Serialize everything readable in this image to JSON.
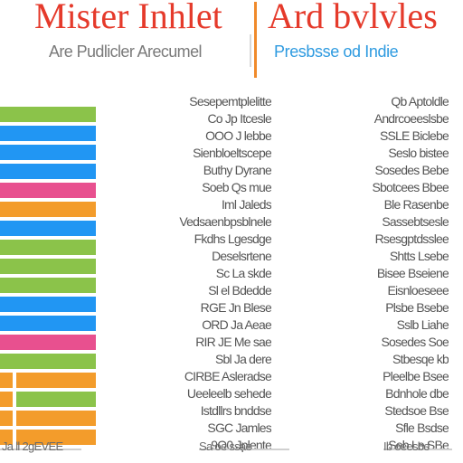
{
  "header": {
    "title_left": "Mister Inhlet",
    "title_right": "Ard bvlvles",
    "subtitle_left": "Are Pudlicler Arecumel",
    "subtitle_right": "Presbsse od Indie"
  },
  "colors": {
    "title": "#e53a2b",
    "subtitle_right": "#2f9be0",
    "divider": "#f08a2b",
    "green": "#8bc34a",
    "blue": "#2196f3",
    "pink": "#e8508f",
    "orange": "#f39c2b"
  },
  "bars": [
    {
      "color": "green"
    },
    {
      "color": "blue"
    },
    {
      "color": "blue"
    },
    {
      "color": "blue"
    },
    {
      "color": "pink"
    },
    {
      "color": "orange"
    },
    {
      "color": "blue"
    },
    {
      "color": "green"
    },
    {
      "color": "green"
    },
    {
      "color": "green"
    },
    {
      "color": "blue"
    },
    {
      "color": "blue"
    },
    {
      "color": "pink"
    },
    {
      "color": "green"
    },
    {
      "color": "orange"
    },
    {
      "color": "green"
    },
    {
      "color": "orange"
    },
    {
      "color": "orange"
    }
  ],
  "columns": {
    "middle": [
      "Sesepemtplelitte",
      "Co Jp Itcesle",
      "OOO J lebbe",
      "Sienbloeltscepe",
      "Buthy Dyrane",
      "Soeb Qs mue",
      "Iml Jaleds",
      "Vedsaenbpsblnele",
      "Fkdhs Lgesdge",
      "Deselsrtene",
      "Sc La skde",
      "Sl el Bdedde",
      "RGE Jn Blese",
      "ORD Ja Aeae",
      "RIR JE Me sae",
      "Sbl Ja dere",
      "CIRBE Asleradse",
      "Ueeleelb sehede",
      "Istdllrs bnddse",
      "SGC Jamles",
      "9O0 Jplente"
    ],
    "right": [
      "Qb Aptoldle",
      "Andrcoeeslsbe",
      "SSLE Biclebe",
      "Seslo bistee",
      "Sosedes Bebe",
      "Sbotcees Bbee",
      "Ble Rasenbe",
      "Sassebtsesle",
      "Rsesgptdsslee",
      "Shtts Lsebe",
      "Bisee Bseiene",
      "Eisnloeseee",
      "Plsbe Bsebe",
      "Sslb Liahe",
      "Sosedes Soe",
      "Stbesqe kb",
      "Pleelbe Bsee",
      "Bdnhole dbe",
      "Stedsoe Bse",
      "Sfle Bsdse",
      "Seb Le SBe"
    ]
  },
  "footer": {
    "left": "Ja ll 2gEVEE",
    "middle": "Sa oe ssae",
    "right": "Ib oeesbe"
  }
}
